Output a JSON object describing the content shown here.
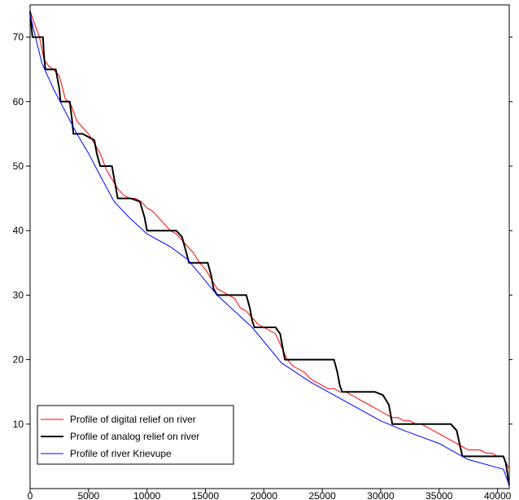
{
  "chart_data": {
    "type": "line",
    "title": "",
    "xlabel": "",
    "ylabel": "",
    "xlim": [
      0,
      41000
    ],
    "ylim": [
      0,
      75
    ],
    "x_ticks": [
      0,
      5000,
      10000,
      15000,
      20000,
      25000,
      30000,
      35000,
      40000
    ],
    "y_ticks": [
      10,
      20,
      30,
      40,
      50,
      60,
      70
    ],
    "grid": false,
    "legend_position": "bottom-left",
    "series": [
      {
        "name": "Profile of digital relief on river",
        "color": "#ff0000",
        "x": [
          0,
          300,
          800,
          1200,
          1600,
          2000,
          2500,
          3000,
          3500,
          4000,
          4500,
          5000,
          5500,
          6000,
          6500,
          7000,
          7500,
          8000,
          8500,
          9000,
          9500,
          10000,
          10500,
          11000,
          11500,
          12000,
          12500,
          13000,
          13500,
          14000,
          14500,
          15000,
          15500,
          16000,
          16500,
          17000,
          17500,
          18000,
          18500,
          19000,
          19500,
          20000,
          20500,
          21000,
          21500,
          22000,
          22500,
          23000,
          23500,
          24000,
          24500,
          25000,
          25500,
          26000,
          26500,
          27000,
          27500,
          28000,
          28500,
          29000,
          29500,
          30000,
          30500,
          31000,
          31500,
          32000,
          32500,
          33000,
          33500,
          34000,
          34500,
          35000,
          35500,
          36000,
          36500,
          37000,
          37500,
          38000,
          38500,
          39000,
          39500,
          40000,
          40500,
          41000
        ],
        "y": [
          74,
          72.5,
          70,
          66.5,
          65.5,
          65,
          64,
          60.5,
          59.5,
          57,
          56,
          55,
          53.5,
          52,
          49.5,
          48,
          46.5,
          45.5,
          45,
          45,
          44.5,
          43.5,
          43,
          42,
          41,
          40,
          39.5,
          38.5,
          37.5,
          36.5,
          35,
          34,
          32.5,
          31,
          30.5,
          30,
          29.5,
          28,
          27.5,
          26.5,
          25.5,
          25,
          24.5,
          24,
          22,
          20,
          19,
          18.5,
          18,
          17,
          16.5,
          16,
          15.5,
          15.5,
          15,
          15,
          14.5,
          14,
          13.5,
          13,
          12.5,
          12,
          11.5,
          11,
          11,
          10.5,
          10.5,
          10,
          10,
          9.5,
          9,
          8.5,
          8,
          7.5,
          7,
          6.5,
          6,
          6,
          6,
          5.5,
          5.5,
          5,
          5,
          3
        ]
      },
      {
        "name": "Profile of analog relief on river",
        "color": "#000000",
        "x": [
          0,
          200,
          1100,
          1200,
          1300,
          2200,
          2500,
          2600,
          3400,
          3600,
          3700,
          4500,
          5500,
          5700,
          6000,
          7000,
          7300,
          7500,
          8600,
          9400,
          9800,
          10000,
          12500,
          13000,
          13300,
          13600,
          13700,
          15200,
          15500,
          15700,
          16000,
          18500,
          18800,
          19000,
          19200,
          21000,
          21400,
          21600,
          21800,
          26000,
          26300,
          26500,
          26700,
          29500,
          30200,
          30700,
          31000,
          36000,
          36500,
          36800,
          37000,
          40500,
          40700,
          41000
        ],
        "y": [
          74,
          70,
          70,
          67,
          65,
          65,
          62,
          60,
          60,
          57,
          55,
          55,
          54,
          52,
          50,
          50,
          47,
          45,
          45,
          44.5,
          42,
          40,
          40,
          39,
          37,
          35,
          35,
          35,
          33,
          31,
          30,
          30,
          28,
          26,
          25,
          25,
          24,
          22,
          20,
          20,
          18,
          16,
          15,
          15,
          14.5,
          13,
          10,
          10,
          9,
          6.5,
          5,
          5,
          4,
          0.5
        ]
      },
      {
        "name": "Profile of river Krievupe",
        "color": "#0000ff",
        "x": [
          0,
          1000,
          2000,
          3000,
          4000,
          5000,
          6000,
          7200,
          8500,
          10000,
          12000,
          13500,
          16000,
          19000,
          21500,
          24000,
          27000,
          30000,
          32000,
          35000,
          37500,
          40500,
          41000
        ],
        "y": [
          73.5,
          66,
          62,
          58.5,
          55,
          52,
          48.5,
          44.5,
          42,
          39.5,
          37.5,
          35.5,
          30,
          25,
          19.5,
          16.5,
          13.5,
          10.5,
          9,
          7,
          4.5,
          3,
          0.5
        ]
      }
    ]
  }
}
